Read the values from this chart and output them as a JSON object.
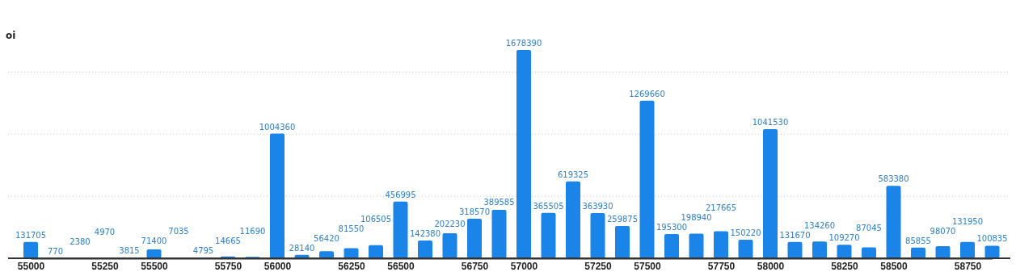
{
  "chart_data": {
    "type": "bar",
    "ylabel": "oi",
    "categories": [
      "55000",
      null,
      null,
      "55250",
      null,
      "55500",
      null,
      null,
      "55750",
      null,
      "56000",
      null,
      null,
      "56250",
      null,
      "56500",
      null,
      null,
      "56750",
      null,
      "57000",
      null,
      null,
      "57250",
      null,
      "57500",
      null,
      null,
      "57750",
      null,
      "58000",
      null,
      null,
      "58250",
      null,
      "58500",
      null,
      null,
      "58750",
      null
    ],
    "values": [
      131705,
      770,
      2380,
      4970,
      3815,
      71400,
      7035,
      4795,
      14665,
      11690,
      1004360,
      28140,
      56420,
      81550,
      106505,
      456995,
      142380,
      202230,
      318570,
      389585,
      1678390,
      365505,
      619325,
      363930,
      259875,
      1269660,
      195300,
      198940,
      217665,
      150220,
      1041530,
      131670,
      134260,
      109270,
      87045,
      583380,
      85855,
      98070,
      131950,
      100835
    ],
    "color": "#1a84e8",
    "yticks": [
      {
        "value": 500000,
        "label": null
      },
      {
        "value": 1000000,
        "label": null
      },
      {
        "value": 1500000,
        "label": null
      }
    ],
    "grid": "y",
    "tick_labels": "x",
    "data_labels": true
  }
}
